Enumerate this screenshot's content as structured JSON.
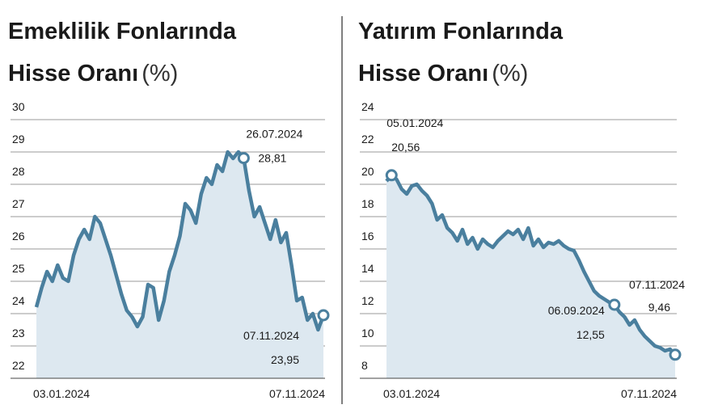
{
  "chart_data": [
    {
      "type": "line",
      "title_lines": [
        "Emeklilik Fonlarında",
        "Hisse Oranı"
      ],
      "unit": "(%)",
      "categories": [
        "03.01.2024",
        null,
        null,
        null,
        null,
        null,
        null,
        null,
        null,
        null,
        null,
        null,
        null,
        null,
        null,
        null,
        null,
        null,
        null,
        null,
        null,
        null,
        null,
        null,
        null,
        null,
        null,
        null,
        null,
        null,
        null,
        null,
        null,
        null,
        null,
        null,
        null,
        null,
        null,
        null,
        null,
        null,
        null,
        null,
        null,
        null,
        null,
        null,
        null,
        null,
        null,
        null,
        null,
        null,
        "07.11.2024"
      ],
      "series": [
        {
          "color": "#4a7f9e",
          "fill": "#dde8f0",
          "values": [
            24.2,
            24.8,
            25.3,
            25.0,
            25.5,
            25.1,
            25.0,
            25.8,
            26.3,
            26.6,
            26.3,
            27.0,
            26.8,
            26.3,
            25.8,
            25.2,
            24.6,
            24.1,
            23.9,
            23.6,
            23.9,
            24.9,
            24.8,
            23.8,
            24.4,
            25.3,
            25.8,
            26.4,
            27.4,
            27.2,
            26.8,
            27.7,
            28.2,
            28.0,
            28.6,
            28.4,
            29.0,
            28.8,
            29.0,
            28.81,
            27.8,
            27.0,
            27.3,
            26.8,
            26.3,
            26.9,
            26.2,
            26.5,
            25.5,
            24.4,
            24.5,
            23.8,
            24.0,
            23.5,
            23.95
          ]
        }
      ],
      "annotations": [
        {
          "index": 39,
          "date": "26.07.2024",
          "value_label": "28,81"
        },
        {
          "index": 54,
          "date": "07.11.2024",
          "value_label": "23,95"
        }
      ],
      "ylim": [
        22,
        30
      ],
      "yticks": [
        22,
        23,
        24,
        25,
        26,
        27,
        28,
        29,
        30
      ],
      "grid": true
    },
    {
      "type": "line",
      "title_lines": [
        "Yatırım Fonlarında",
        "Hisse Oranı"
      ],
      "unit": "(%)",
      "categories": [
        "03.01.2024",
        null,
        null,
        null,
        null,
        null,
        null,
        null,
        null,
        null,
        null,
        null,
        null,
        null,
        null,
        null,
        null,
        null,
        null,
        null,
        null,
        null,
        null,
        null,
        null,
        null,
        null,
        null,
        null,
        null,
        null,
        null,
        null,
        null,
        null,
        null,
        null,
        null,
        null,
        null,
        null,
        null,
        null,
        null,
        null,
        null,
        null,
        null,
        null,
        null,
        null,
        null,
        null,
        null,
        null,
        null,
        null,
        "07.11.2024"
      ],
      "series": [
        {
          "color": "#4a7f9e",
          "fill": "#dde8f0",
          "values": [
            20.2,
            20.56,
            20.3,
            19.7,
            19.4,
            19.9,
            20.0,
            19.6,
            19.3,
            18.8,
            17.8,
            18.1,
            17.3,
            17.0,
            16.5,
            17.2,
            16.3,
            16.7,
            16.0,
            16.6,
            16.3,
            16.1,
            16.5,
            16.8,
            17.1,
            16.9,
            17.2,
            16.6,
            17.3,
            16.2,
            16.6,
            16.1,
            16.4,
            16.3,
            16.5,
            16.2,
            16.0,
            15.9,
            15.3,
            14.6,
            14.0,
            13.4,
            13.1,
            12.9,
            12.7,
            12.55,
            12.1,
            11.8,
            11.3,
            11.6,
            11.0,
            10.6,
            10.3,
            10.0,
            9.9,
            9.7,
            9.8,
            9.46
          ]
        }
      ],
      "annotations": [
        {
          "index": 1,
          "date": "05.01.2024",
          "value_label": "20,56"
        },
        {
          "index": 45,
          "date": "06.09.2024",
          "value_label": "12,55"
        },
        {
          "index": 57,
          "date": "07.11.2024",
          "value_label": "9,46"
        }
      ],
      "ylim": [
        8,
        24
      ],
      "yticks": [
        8,
        10,
        12,
        14,
        16,
        18,
        20,
        22,
        24
      ],
      "grid": true
    }
  ]
}
